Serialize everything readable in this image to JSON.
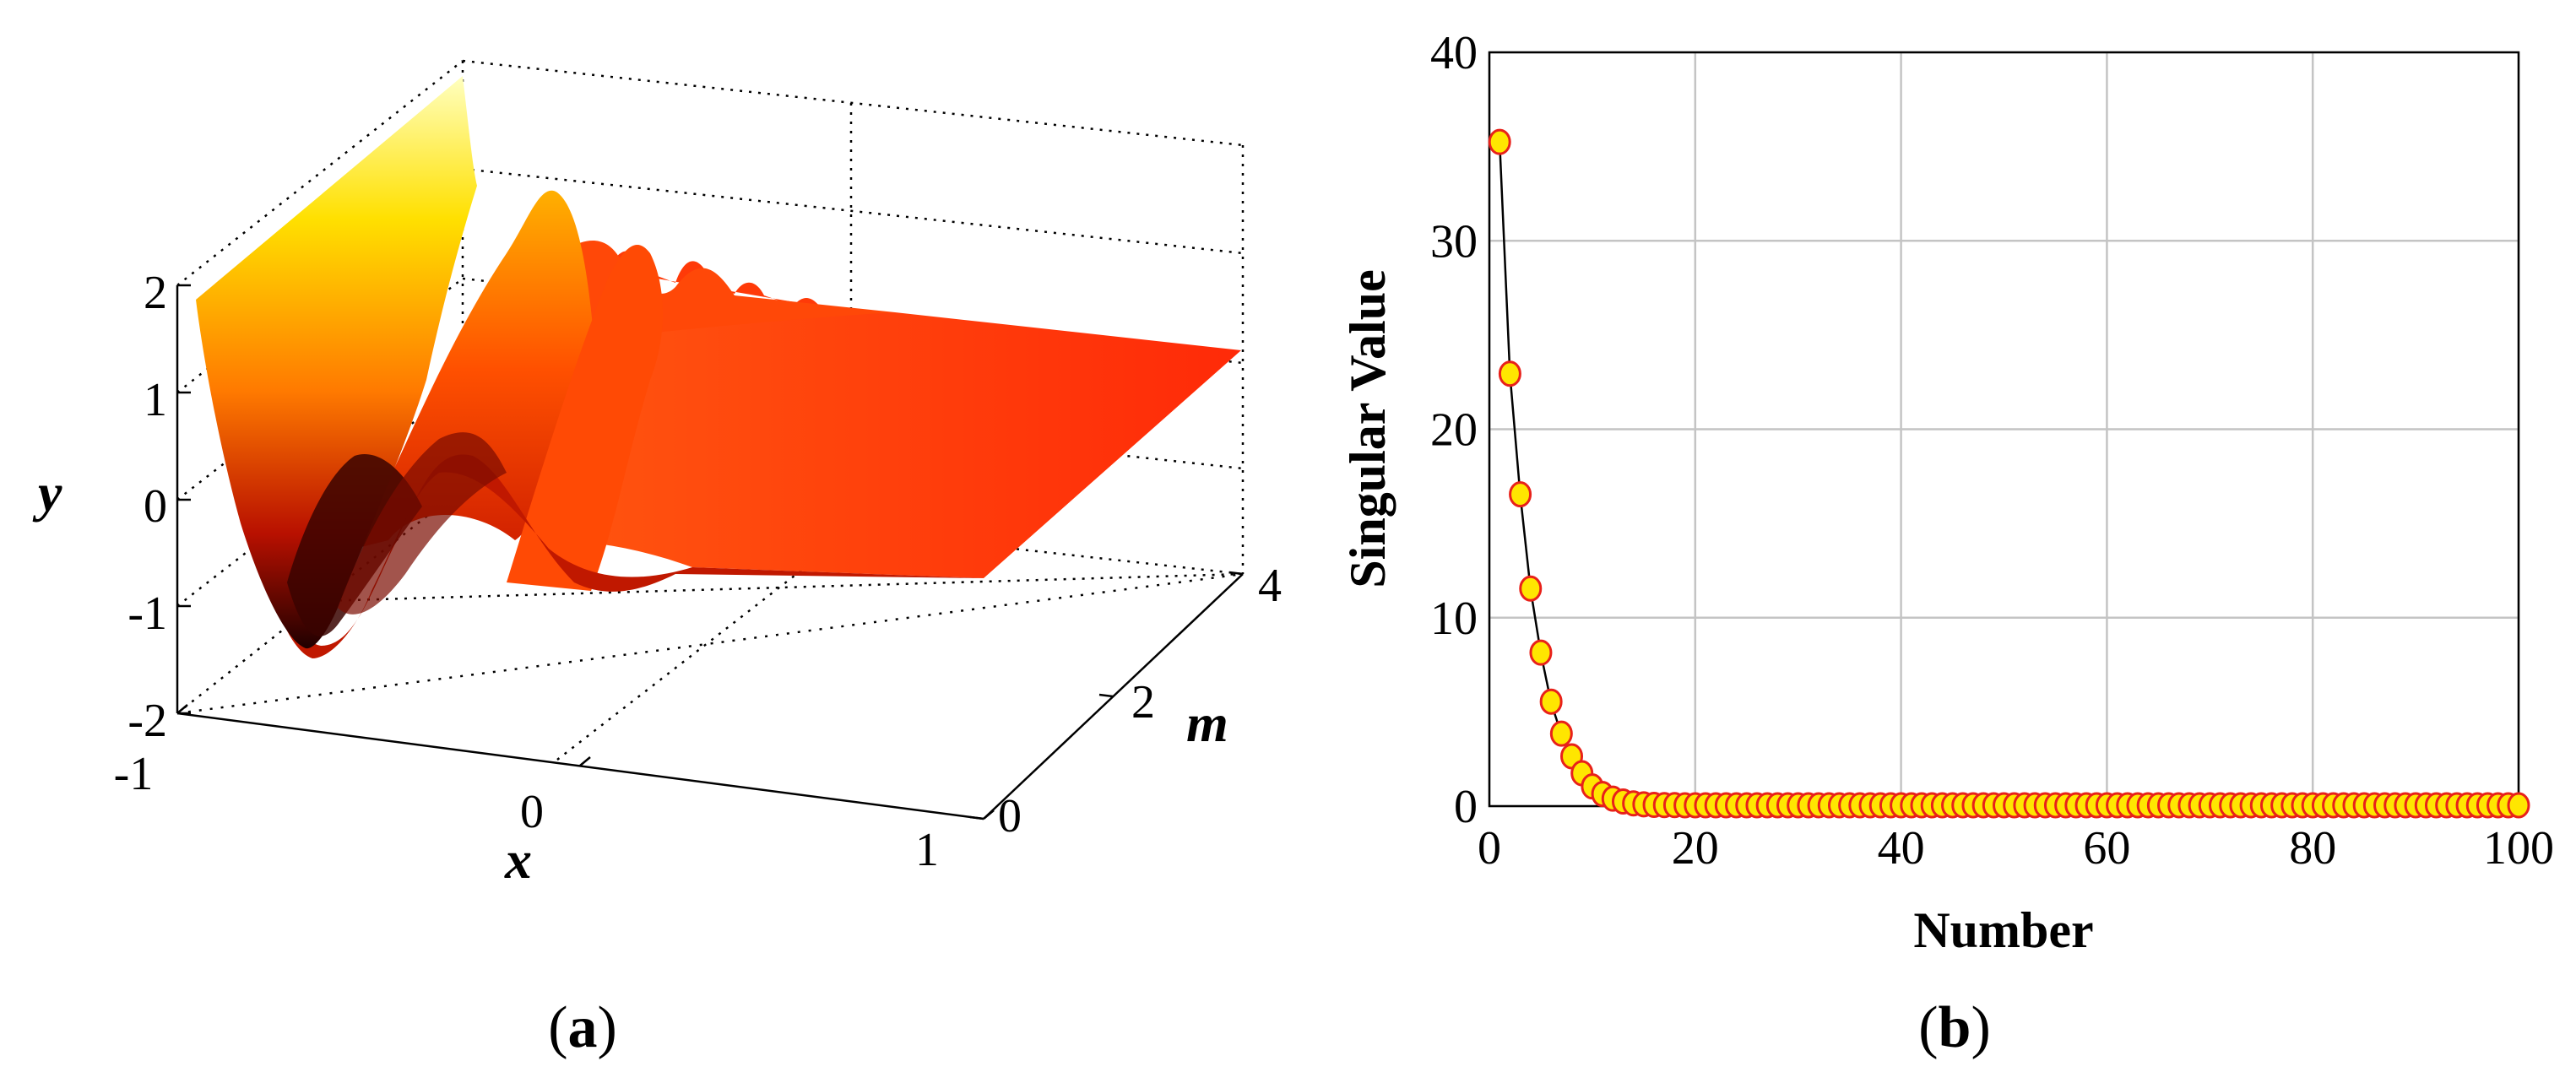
{
  "panels": [
    {
      "id": "a",
      "open": "(",
      "letter": "a",
      "close": ")"
    },
    {
      "id": "b",
      "open": "(",
      "letter": "b",
      "close": ")"
    }
  ],
  "chart_data": [
    {
      "type": "surface",
      "panel": "a",
      "colormap": "hot",
      "xlabel": "x",
      "ylabel": "m",
      "zlabel": "y",
      "xlim": [
        -1,
        1
      ],
      "ylim": [
        0,
        4
      ],
      "zlim": [
        -2,
        2
      ],
      "x_ticks": [
        "-1",
        "0",
        "1"
      ],
      "y_ticks": [
        "0",
        "2",
        "4"
      ],
      "z_ticks": [
        "-2",
        "-1",
        "0",
        "1",
        "2"
      ],
      "grid": true,
      "surface_profile": {
        "x": [
          -1.0,
          -0.9,
          -0.8,
          -0.7,
          -0.6,
          -0.5,
          -0.4,
          -0.3,
          -0.2,
          -0.1,
          0.0,
          0.2,
          0.4,
          0.6,
          0.8,
          1.0
        ],
        "y_at_m0": [
          1.8,
          0.2,
          -1.2,
          -1.8,
          -1.1,
          0.2,
          1.0,
          0.8,
          -0.2,
          -0.8,
          -0.9,
          -0.55,
          -0.6,
          -0.6,
          -0.6,
          -0.6
        ],
        "y_at_m4": [
          2.0,
          1.5,
          0.9,
          1.4,
          0.6,
          1.2,
          0.7,
          0.9,
          0.8,
          0.85,
          0.8,
          0.75,
          0.7,
          0.7,
          0.7,
          0.7
        ]
      }
    },
    {
      "type": "line",
      "panel": "b",
      "xlabel": "Number",
      "ylabel": "Singular Value",
      "xlim": [
        0,
        100
      ],
      "ylim": [
        0,
        40
      ],
      "x_ticks": [
        "0",
        "20",
        "40",
        "60",
        "80",
        "100"
      ],
      "y_ticks": [
        "0",
        "10",
        "20",
        "30",
        "40"
      ],
      "grid": true,
      "marker_fill": "#FFE600",
      "marker_edge": "#E8211A",
      "line_color": "#000000",
      "series": [
        {
          "x": [
            1,
            2,
            3,
            4,
            5,
            6,
            7,
            8,
            9,
            10,
            11,
            12,
            13,
            14,
            15,
            16,
            17,
            18,
            19,
            20,
            21,
            22,
            23,
            24,
            25,
            26,
            27,
            28,
            29,
            30,
            31,
            32,
            33,
            34,
            35,
            36,
            37,
            38,
            39,
            40,
            41,
            42,
            43,
            44,
            45,
            46,
            47,
            48,
            49,
            50,
            51,
            52,
            53,
            54,
            55,
            56,
            57,
            58,
            59,
            60,
            61,
            62,
            63,
            64,
            65,
            66,
            67,
            68,
            69,
            70,
            71,
            72,
            73,
            74,
            75,
            76,
            77,
            78,
            79,
            80,
            81,
            82,
            83,
            84,
            85,
            86,
            87,
            88,
            89,
            90,
            91,
            92,
            93,
            94,
            95,
            96,
            97,
            98,
            99,
            100
          ],
          "y": [
            35.2,
            22.9,
            16.5,
            11.5,
            8.1,
            5.5,
            3.8,
            2.6,
            1.7,
            1.0,
            0.6,
            0.35,
            0.2,
            0.1,
            0.05,
            0.02,
            0.01,
            0.01,
            0,
            0,
            0,
            0,
            0,
            0,
            0,
            0,
            0,
            0,
            0,
            0,
            0,
            0,
            0,
            0,
            0,
            0,
            0,
            0,
            0,
            0,
            0,
            0,
            0,
            0,
            0,
            0,
            0,
            0,
            0,
            0,
            0,
            0,
            0,
            0,
            0,
            0,
            0,
            0,
            0,
            0,
            0,
            0,
            0,
            0,
            0,
            0,
            0,
            0,
            0,
            0,
            0,
            0,
            0,
            0,
            0,
            0,
            0,
            0,
            0,
            0,
            0,
            0,
            0,
            0,
            0,
            0,
            0,
            0,
            0,
            0,
            0,
            0,
            0,
            0,
            0,
            0,
            0,
            0,
            0,
            0
          ]
        }
      ]
    }
  ]
}
